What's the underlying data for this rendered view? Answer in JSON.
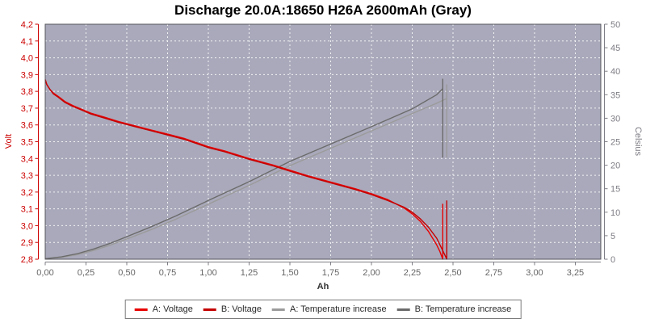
{
  "chart_data": {
    "type": "line",
    "title": "Discharge 20.0A:18650 H26A 2600mAh (Gray)",
    "xlabel": "Ah",
    "ylabel_left": "Volt",
    "ylabel_right": "Celsius",
    "x_range": [
      0,
      3.406
    ],
    "y_left_range": [
      2.8,
      4.2
    ],
    "y_right_range": [
      0,
      50
    ],
    "grid": true,
    "legend_position": "bottom",
    "colors": {
      "plot_background": "#a9a9bb",
      "grid": "#ffffff",
      "plot_border": "#55555c",
      "left_axis": "#cc0000",
      "right_axis": "#7d7d85",
      "x_tick_labels": "#666666",
      "x_axis_title": "#333333",
      "title": "#000000",
      "legend_border": "#7a7a7a",
      "legend_text": "#2a2a2a"
    },
    "x_ticks": [
      {
        "v": 0.0,
        "label": "0,00"
      },
      {
        "v": 0.25,
        "label": "0,25"
      },
      {
        "v": 0.5,
        "label": "0,50"
      },
      {
        "v": 0.75,
        "label": "0,75"
      },
      {
        "v": 1.0,
        "label": "1,00"
      },
      {
        "v": 1.25,
        "label": "1,25"
      },
      {
        "v": 1.5,
        "label": "1,50"
      },
      {
        "v": 1.75,
        "label": "1,75"
      },
      {
        "v": 2.0,
        "label": "2,00"
      },
      {
        "v": 2.25,
        "label": "2,25"
      },
      {
        "v": 2.5,
        "label": "2,50"
      },
      {
        "v": 2.75,
        "label": "2,75"
      },
      {
        "v": 3.0,
        "label": "3,00"
      },
      {
        "v": 3.25,
        "label": "3,25"
      }
    ],
    "y_left_ticks": [
      {
        "v": 2.8,
        "label": "2,8"
      },
      {
        "v": 2.9,
        "label": "2,9"
      },
      {
        "v": 3.0,
        "label": "3,0"
      },
      {
        "v": 3.1,
        "label": "3,1"
      },
      {
        "v": 3.2,
        "label": "3,2"
      },
      {
        "v": 3.3,
        "label": "3,3"
      },
      {
        "v": 3.4,
        "label": "3,4"
      },
      {
        "v": 3.5,
        "label": "3,5"
      },
      {
        "v": 3.6,
        "label": "3,6"
      },
      {
        "v": 3.7,
        "label": "3,7"
      },
      {
        "v": 3.8,
        "label": "3,8"
      },
      {
        "v": 3.9,
        "label": "3,9"
      },
      {
        "v": 4.0,
        "label": "4,0"
      },
      {
        "v": 4.1,
        "label": "4,1"
      },
      {
        "v": 4.2,
        "label": "4,2"
      }
    ],
    "y_right_ticks": [
      {
        "v": 0,
        "label": "0"
      },
      {
        "v": 5,
        "label": "5"
      },
      {
        "v": 10,
        "label": "10"
      },
      {
        "v": 15,
        "label": "15"
      },
      {
        "v": 20,
        "label": "20"
      },
      {
        "v": 25,
        "label": "25"
      },
      {
        "v": 30,
        "label": "30"
      },
      {
        "v": 35,
        "label": "35"
      },
      {
        "v": 40,
        "label": "40"
      },
      {
        "v": 45,
        "label": "45"
      },
      {
        "v": 50,
        "label": "50"
      }
    ],
    "series": [
      {
        "name": "A: Voltage",
        "axis": "left",
        "color": "#e80000",
        "points": [
          [
            0,
            3.87
          ],
          [
            0.01,
            3.84
          ],
          [
            0.03,
            3.81
          ],
          [
            0.05,
            3.79
          ],
          [
            0.08,
            3.77
          ],
          [
            0.12,
            3.74
          ],
          [
            0.17,
            3.715
          ],
          [
            0.22,
            3.695
          ],
          [
            0.28,
            3.67
          ],
          [
            0.35,
            3.65
          ],
          [
            0.45,
            3.62
          ],
          [
            0.55,
            3.595
          ],
          [
            0.65,
            3.57
          ],
          [
            0.75,
            3.545
          ],
          [
            0.85,
            3.52
          ],
          [
            1.0,
            3.47
          ],
          [
            1.1,
            3.445
          ],
          [
            1.25,
            3.4
          ],
          [
            1.4,
            3.36
          ],
          [
            1.5,
            3.33
          ],
          [
            1.6,
            3.3
          ],
          [
            1.75,
            3.26
          ],
          [
            1.9,
            3.22
          ],
          [
            2.0,
            3.19
          ],
          [
            2.1,
            3.155
          ],
          [
            2.2,
            3.105
          ],
          [
            2.25,
            3.07
          ],
          [
            2.3,
            3.025
          ],
          [
            2.35,
            2.965
          ],
          [
            2.4,
            2.885
          ],
          [
            2.42,
            2.845
          ],
          [
            2.437,
            2.8
          ],
          [
            2.437,
            3.13
          ]
        ]
      },
      {
        "name": "B: Voltage",
        "axis": "left",
        "color": "#c40000",
        "points": [
          [
            0,
            3.87
          ],
          [
            0.01,
            3.84
          ],
          [
            0.03,
            3.81
          ],
          [
            0.05,
            3.785
          ],
          [
            0.08,
            3.765
          ],
          [
            0.12,
            3.735
          ],
          [
            0.17,
            3.71
          ],
          [
            0.22,
            3.69
          ],
          [
            0.28,
            3.665
          ],
          [
            0.35,
            3.645
          ],
          [
            0.45,
            3.615
          ],
          [
            0.55,
            3.59
          ],
          [
            0.65,
            3.565
          ],
          [
            0.75,
            3.54
          ],
          [
            0.85,
            3.515
          ],
          [
            1.0,
            3.465
          ],
          [
            1.1,
            3.44
          ],
          [
            1.25,
            3.395
          ],
          [
            1.4,
            3.355
          ],
          [
            1.5,
            3.325
          ],
          [
            1.6,
            3.295
          ],
          [
            1.75,
            3.255
          ],
          [
            1.9,
            3.215
          ],
          [
            2.0,
            3.185
          ],
          [
            2.1,
            3.15
          ],
          [
            2.2,
            3.11
          ],
          [
            2.25,
            3.08
          ],
          [
            2.3,
            3.04
          ],
          [
            2.35,
            2.99
          ],
          [
            2.4,
            2.925
          ],
          [
            2.44,
            2.845
          ],
          [
            2.462,
            2.8
          ],
          [
            2.462,
            3.15
          ]
        ]
      },
      {
        "name": "A: Temperature increase",
        "axis": "right",
        "color": "#9b9b9b",
        "points": [
          [
            0,
            0.1
          ],
          [
            0.1,
            0.4
          ],
          [
            0.2,
            1.0
          ],
          [
            0.3,
            1.9
          ],
          [
            0.4,
            3.0
          ],
          [
            0.5,
            4.3
          ],
          [
            0.65,
            6.3
          ],
          [
            0.8,
            8.5
          ],
          [
            1.0,
            11.7
          ],
          [
            1.25,
            15.7
          ],
          [
            1.5,
            19.9
          ],
          [
            1.75,
            23.6
          ],
          [
            2.0,
            27.3
          ],
          [
            2.25,
            31.0
          ],
          [
            2.4,
            33.2
          ],
          [
            2.462,
            34.2
          ],
          [
            2.462,
            37.1
          ],
          [
            2.462,
            21.6
          ]
        ]
      },
      {
        "name": "B: Temperature increase",
        "axis": "right",
        "color": "#6b6b6b",
        "points": [
          [
            0,
            0.1
          ],
          [
            0.1,
            0.5
          ],
          [
            0.2,
            1.2
          ],
          [
            0.3,
            2.2
          ],
          [
            0.4,
            3.4
          ],
          [
            0.5,
            4.8
          ],
          [
            0.65,
            6.9
          ],
          [
            0.8,
            9.2
          ],
          [
            1.0,
            12.5
          ],
          [
            1.25,
            16.5
          ],
          [
            1.5,
            20.8
          ],
          [
            1.75,
            24.5
          ],
          [
            2.0,
            28.2
          ],
          [
            2.25,
            32.0
          ],
          [
            2.4,
            35.0
          ],
          [
            2.437,
            36.3
          ],
          [
            2.437,
            38.3
          ],
          [
            2.437,
            21.6
          ]
        ]
      }
    ]
  }
}
